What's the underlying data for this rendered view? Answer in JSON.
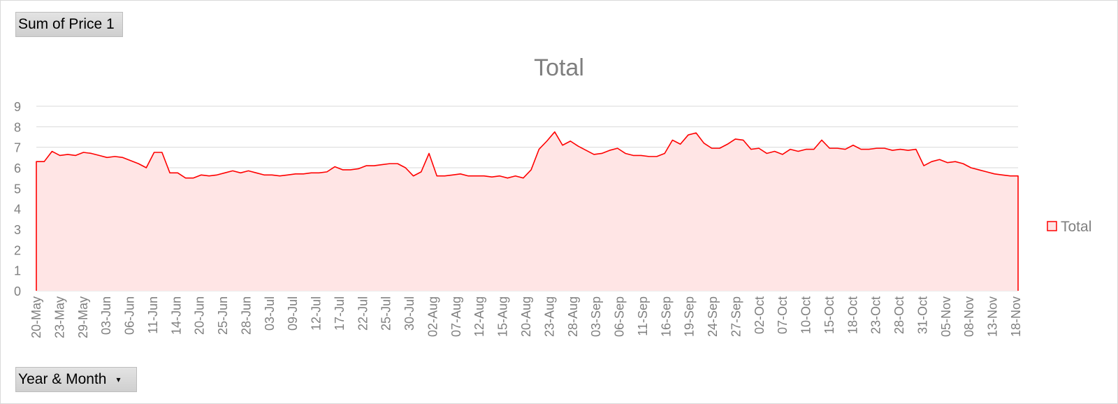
{
  "value_field": {
    "label": "Sum of Price 1"
  },
  "axis_field": {
    "label": "Year & Month",
    "dropdown_icon": "chevron-down-icon"
  },
  "colors": {
    "line": "#ff0000",
    "fill": "#ffe5e5",
    "grid": "#d9d9d9",
    "text": "#7f7f7f"
  },
  "chart_data": {
    "type": "area",
    "title": "Total",
    "legend": {
      "entries": [
        "Total"
      ],
      "position": "right"
    },
    "grid": true,
    "ylim": [
      0,
      9
    ],
    "yticks": [
      0,
      1,
      2,
      3,
      4,
      5,
      6,
      7,
      8,
      9
    ],
    "xticklabels": [
      "20-May",
      "23-May",
      "29-May",
      "03-Jun",
      "06-Jun",
      "11-Jun",
      "14-Jun",
      "20-Jun",
      "25-Jun",
      "28-Jun",
      "03-Jul",
      "09-Jul",
      "12-Jul",
      "17-Jul",
      "22-Jul",
      "25-Jul",
      "30-Jul",
      "02-Aug",
      "07-Aug",
      "12-Aug",
      "15-Aug",
      "20-Aug",
      "23-Aug",
      "28-Aug",
      "03-Sep",
      "06-Sep",
      "11-Sep",
      "16-Sep",
      "19-Sep",
      "24-Sep",
      "27-Sep",
      "02-Oct",
      "07-Oct",
      "10-Oct",
      "15-Oct",
      "18-Oct",
      "23-Oct",
      "28-Oct",
      "31-Oct",
      "05-Nov",
      "08-Nov",
      "13-Nov",
      "18-Nov"
    ],
    "series": [
      {
        "name": "Total",
        "values": [
          6.3,
          6.3,
          6.8,
          6.6,
          6.65,
          6.6,
          6.75,
          6.7,
          6.6,
          6.5,
          6.55,
          6.5,
          6.35,
          6.2,
          6.0,
          6.75,
          6.75,
          5.75,
          5.75,
          5.5,
          5.5,
          5.65,
          5.6,
          5.65,
          5.75,
          5.85,
          5.75,
          5.85,
          5.75,
          5.65,
          5.65,
          5.6,
          5.65,
          5.7,
          5.7,
          5.75,
          5.75,
          5.8,
          6.05,
          5.9,
          5.9,
          5.95,
          6.1,
          6.1,
          6.15,
          6.2,
          6.2,
          6.0,
          5.6,
          5.8,
          6.7,
          5.6,
          5.6,
          5.65,
          5.7,
          5.6,
          5.6,
          5.6,
          5.55,
          5.6,
          5.5,
          5.6,
          5.5,
          5.9,
          6.9,
          7.3,
          7.75,
          7.1,
          7.3,
          7.05,
          6.85,
          6.65,
          6.7,
          6.85,
          6.95,
          6.7,
          6.6,
          6.6,
          6.55,
          6.55,
          6.7,
          7.35,
          7.15,
          7.6,
          7.7,
          7.2,
          6.95,
          6.95,
          7.15,
          7.4,
          7.35,
          6.9,
          6.95,
          6.7,
          6.8,
          6.65,
          6.9,
          6.8,
          6.9,
          6.9,
          7.35,
          6.95,
          6.95,
          6.9,
          7.1,
          6.9,
          6.9,
          6.95,
          6.95,
          6.85,
          6.9,
          6.85,
          6.9,
          6.1,
          6.3,
          6.4,
          6.25,
          6.3,
          6.2,
          6.0,
          5.9,
          5.8,
          5.7,
          5.65,
          5.6,
          5.6
        ]
      }
    ]
  }
}
